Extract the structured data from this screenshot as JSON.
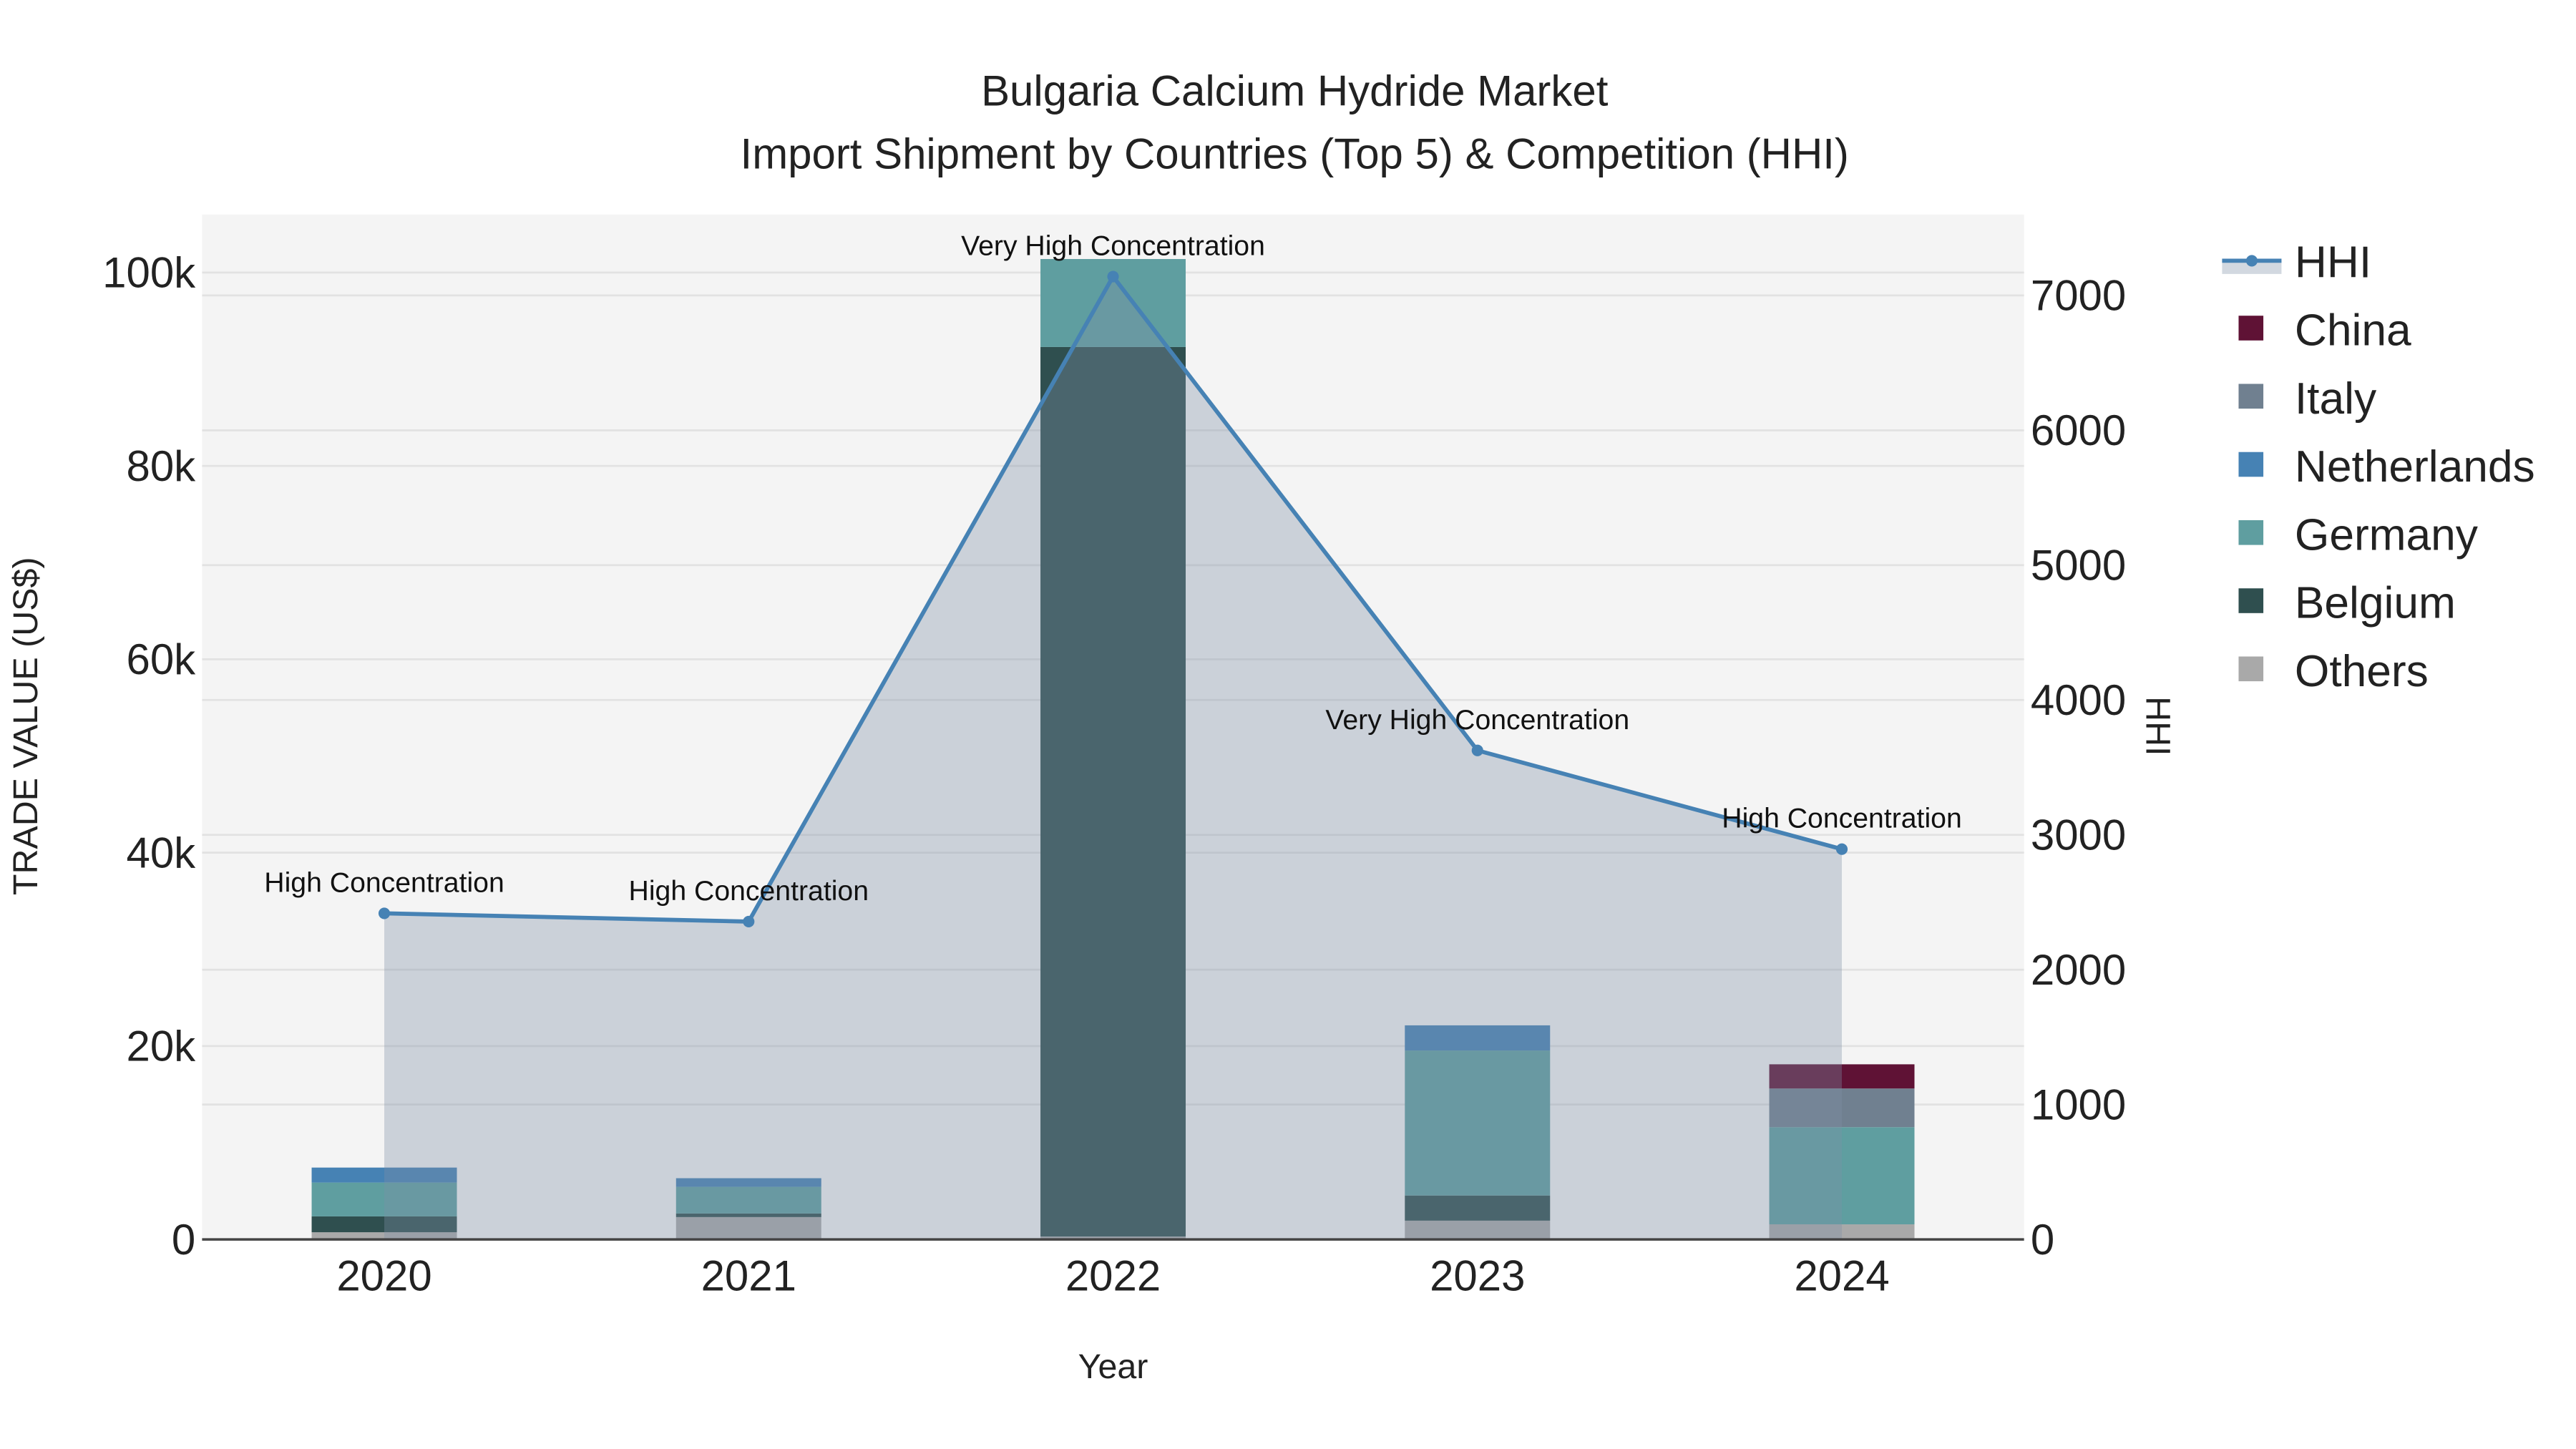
{
  "chart_data": {
    "type": "bar",
    "title_line1": "Bulgaria Calcium Hydride Market",
    "title_line2": "Import Shipment by Countries (Top 5) & Competition (HHI)",
    "xlabel": "Year",
    "ylabel": "TRADE VALUE (US$)",
    "y2label": "HHI",
    "categories": [
      "2020",
      "2021",
      "2022",
      "2023",
      "2024"
    ],
    "ylim": [
      0,
      106000
    ],
    "y2lim": [
      0,
      7600
    ],
    "yticks": [
      {
        "v": 0,
        "label": "0"
      },
      {
        "v": 20000,
        "label": "20k"
      },
      {
        "v": 40000,
        "label": "40k"
      },
      {
        "v": 60000,
        "label": "60k"
      },
      {
        "v": 80000,
        "label": "80k"
      },
      {
        "v": 100000,
        "label": "100k"
      }
    ],
    "y2ticks": [
      {
        "v": 0,
        "label": "0"
      },
      {
        "v": 1000,
        "label": "1000"
      },
      {
        "v": 2000,
        "label": "2000"
      },
      {
        "v": 3000,
        "label": "3000"
      },
      {
        "v": 4000,
        "label": "4000"
      },
      {
        "v": 5000,
        "label": "5000"
      },
      {
        "v": 6000,
        "label": "6000"
      },
      {
        "v": 7000,
        "label": "7000"
      }
    ],
    "grid": true,
    "legend_position": "right",
    "series": [
      {
        "name": "Others",
        "color": "#a9a9a9",
        "values": [
          740,
          2310,
          300,
          1940,
          1560
        ]
      },
      {
        "name": "Belgium",
        "color": "#2f4f4f",
        "values": [
          1640,
          370,
          92000,
          2600,
          0
        ]
      },
      {
        "name": "Germany",
        "color": "#5f9ea0",
        "values": [
          3500,
          2760,
          9100,
          15000,
          10050
        ]
      },
      {
        "name": "Netherlands",
        "color": "#4682b4",
        "values": [
          1550,
          890,
          0,
          2600,
          0
        ]
      },
      {
        "name": "Italy",
        "color": "#708090",
        "values": [
          0,
          0,
          0,
          0,
          4000
        ]
      },
      {
        "name": "China",
        "color": "#5f1235",
        "values": [
          0,
          0,
          0,
          0,
          2500
        ]
      }
    ],
    "hhi": {
      "name": "HHI",
      "color": "#4682b4",
      "values": [
        2418,
        2357,
        7140,
        3626,
        2894
      ]
    },
    "annotations": [
      "High Concentration",
      "High Concentration",
      "Very High Concentration",
      "Very High Concentration",
      "High Concentration"
    ],
    "legend": [
      "HHI",
      "China",
      "Italy",
      "Netherlands",
      "Germany",
      "Belgium",
      "Others"
    ]
  }
}
